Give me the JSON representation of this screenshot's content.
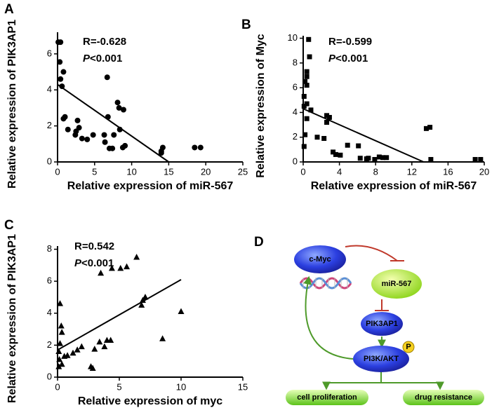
{
  "chart_data": [
    {
      "type": "scatter",
      "label": "A",
      "x_label": "Relative expression of miR-567",
      "y_label": "Relative expression of PIK3AP1",
      "r_text": "R=-0.628",
      "p_label": "P",
      "p_value": "<0.001",
      "marker": "circle",
      "color": "#000000",
      "xlim": [
        0,
        25
      ],
      "xticks": [
        0,
        5,
        10,
        15,
        20,
        25
      ],
      "ylim": [
        0,
        7.2
      ],
      "yticks": [
        0,
        2,
        4,
        6
      ],
      "x": [
        0.1,
        0.4,
        0.3,
        0.8,
        0.4,
        0.6,
        1.0,
        0.8,
        1.4,
        2.5,
        2.7,
        2.4,
        2.9,
        3.3,
        4.0,
        4.8,
        6.3,
        6.4,
        6.7,
        6.8,
        7.0,
        7.4,
        7.6,
        8.1,
        8.3,
        8.4,
        8.8,
        9.1,
        8.9,
        14.0,
        14.2,
        14.0,
        18.5,
        19.3
      ],
      "values": [
        6.65,
        6.65,
        5.55,
        5.0,
        4.6,
        4.2,
        2.5,
        2.4,
        1.8,
        1.7,
        2.3,
        1.5,
        1.9,
        1.3,
        1.25,
        1.5,
        1.5,
        1.1,
        4.7,
        2.5,
        0.75,
        0.75,
        1.5,
        3.3,
        3.0,
        1.8,
        0.8,
        0.9,
        2.9,
        0.6,
        0.8,
        0.5,
        0.8,
        0.8
      ],
      "fit_line": {
        "x": [
          0,
          15
        ],
        "y": [
          4.3,
          0
        ]
      }
    },
    {
      "type": "scatter",
      "label": "B",
      "x_label": "Relative expression of miR-567",
      "y_label": "Relative expression of Myc",
      "r_text": "R=-0.599",
      "p_label": "P",
      "p_value": "<0.001",
      "marker": "square",
      "color": "#000000",
      "xlim": [
        0,
        20
      ],
      "xticks": [
        0,
        4,
        8,
        12,
        16,
        20
      ],
      "ylim": [
        0,
        10.2
      ],
      "yticks": [
        0,
        2,
        4,
        6,
        8,
        10
      ],
      "x": [
        0.6,
        0.7,
        0.4,
        0.4,
        0.2,
        0.4,
        0.1,
        0.1,
        0.4,
        0.85,
        0.4,
        0.2,
        0.1,
        1.55,
        2.3,
        2.6,
        2.9,
        2.6,
        3.3,
        3.6,
        4.1,
        4.9,
        6.1,
        6.3,
        7.0,
        7.2,
        7.9,
        8.4,
        8.8,
        9.2,
        13.6,
        14.0,
        14.1,
        19.0,
        19.6
      ],
      "values": [
        9.9,
        8.5,
        7.3,
        6.9,
        6.5,
        6.2,
        5.3,
        4.5,
        4.7,
        4.2,
        3.5,
        2.2,
        1.25,
        2.0,
        1.9,
        3.75,
        3.6,
        3.2,
        0.8,
        0.6,
        0.55,
        1.35,
        1.3,
        0.3,
        0.25,
        0.3,
        0.2,
        0.4,
        0.35,
        0.35,
        2.7,
        2.8,
        0.2,
        0.2,
        0.2
      ],
      "fit_line": {
        "x": [
          0,
          13.3
        ],
        "y": [
          4.3,
          0
        ]
      }
    },
    {
      "type": "scatter",
      "label": "C",
      "x_label": "Relative expression of myc",
      "y_label": "Relative expression of PIK3AP1",
      "r_text": "R=0.542",
      "p_label": "P",
      "p_value": "<0.001",
      "marker": "triangle",
      "color": "#000000",
      "xlim": [
        0,
        15
      ],
      "xticks": [
        0,
        5,
        10,
        15
      ],
      "ylim": [
        0,
        8.2
      ],
      "yticks": [
        0,
        2,
        4,
        6,
        8
      ],
      "x": [
        0.2,
        0.3,
        0.35,
        0.2,
        0.1,
        0.15,
        0.35,
        0.1,
        0.55,
        0.8,
        1.25,
        1.6,
        1.95,
        2.7,
        2.85,
        3.0,
        3.4,
        3.8,
        4.0,
        4.3,
        3.5,
        4.4,
        5.1,
        5.6,
        6.4,
        6.8,
        6.9,
        7.1,
        8.5,
        10.0
      ],
      "values": [
        4.6,
        3.2,
        2.8,
        2.1,
        1.6,
        1.1,
        0.8,
        0.65,
        1.3,
        1.35,
        1.5,
        1.7,
        1.9,
        0.65,
        0.55,
        1.75,
        2.2,
        1.9,
        2.3,
        2.3,
        6.5,
        6.8,
        6.8,
        6.9,
        7.5,
        4.5,
        4.8,
        5.0,
        2.4,
        4.1
      ],
      "fit_line": {
        "x": [
          0,
          10
        ],
        "y": [
          1.7,
          6.1
        ]
      }
    }
  ],
  "diagram": {
    "label": "D",
    "nodes": [
      {
        "label": "c-Myc"
      },
      {
        "label": "miR-567"
      },
      {
        "label": "PIK3AP1"
      },
      {
        "label": "PI3K/AKT"
      },
      {
        "label": "P"
      },
      {
        "label": "cell proliferation"
      },
      {
        "label": "drug resistance"
      }
    ]
  }
}
